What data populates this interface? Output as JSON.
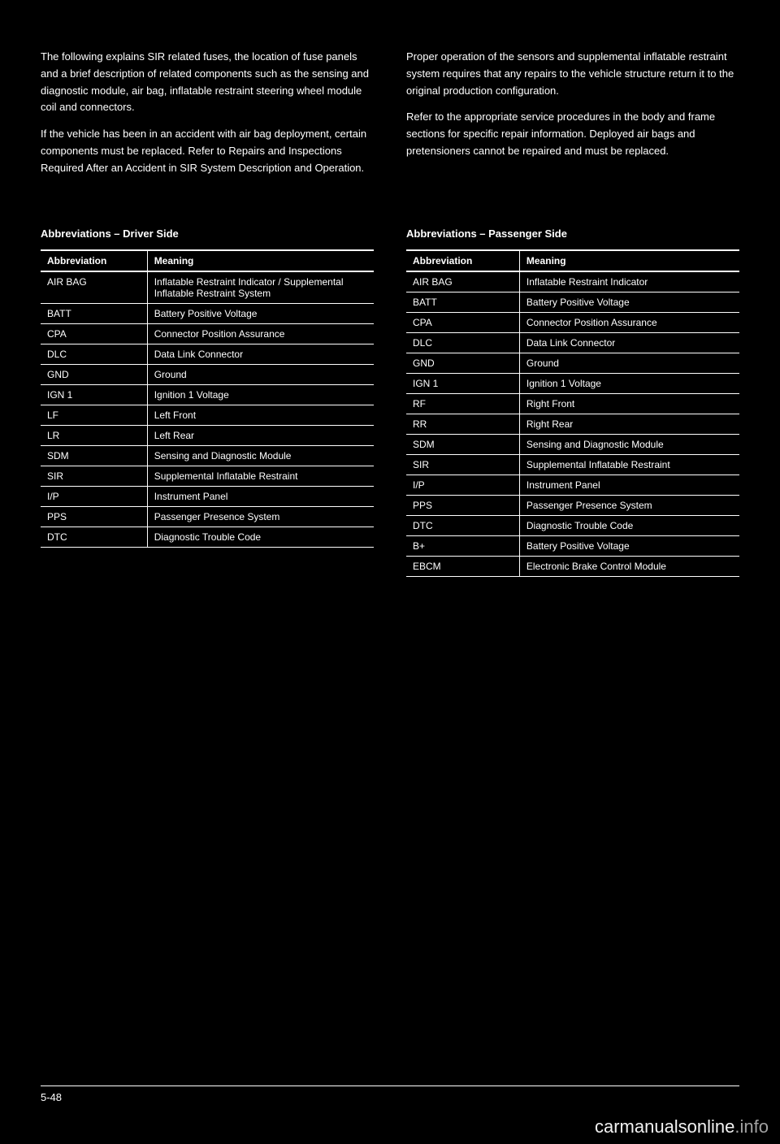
{
  "page": {
    "number": "5-48",
    "footer_rule_color": "#ffffff",
    "background": "#000000",
    "text_color": "#ffffff"
  },
  "prose": {
    "left": [
      "The following explains SIR related fuses, the location of fuse panels and a brief description of related components such as the sensing and diagnostic module, air bag, inflatable restraint steering wheel module coil and connectors.",
      "If the vehicle has been in an accident with air bag deployment, certain components must be replaced. Refer to Repairs and Inspections Required After an Accident in SIR System Description and Operation."
    ],
    "right": [
      "Proper operation of the sensors and supplemental inflatable restraint system requires that any repairs to the vehicle structure return it to the original production configuration.",
      "Refer to the appropriate service procedures in the body and frame sections for specific repair information. Deployed air bags and pretensioners cannot be repaired and must be replaced."
    ]
  },
  "left_table": {
    "title": "Abbreviations – Driver Side",
    "columns": [
      "Abbreviation",
      "Meaning"
    ],
    "rows": [
      [
        "AIR BAG",
        "Inflatable Restraint Indicator / Supplemental Inflatable Restraint System"
      ],
      [
        "BATT",
        "Battery Positive Voltage"
      ],
      [
        "CPA",
        "Connector Position Assurance"
      ],
      [
        "DLC",
        "Data Link Connector"
      ],
      [
        "GND",
        "Ground"
      ],
      [
        "IGN 1",
        "Ignition 1 Voltage"
      ],
      [
        "LF",
        "Left Front"
      ],
      [
        "LR",
        "Left Rear"
      ],
      [
        "SDM",
        "Sensing and Diagnostic Module"
      ],
      [
        "SIR",
        "Supplemental Inflatable Restraint"
      ],
      [
        "I/P",
        "Instrument Panel"
      ],
      [
        "PPS",
        "Passenger Presence System"
      ],
      [
        "DTC",
        "Diagnostic Trouble Code"
      ]
    ],
    "border_color": "#ffffff",
    "font_size_pt": 9
  },
  "right_table": {
    "title": "Abbreviations – Passenger Side",
    "columns": [
      "Abbreviation",
      "Meaning"
    ],
    "rows": [
      [
        "AIR BAG",
        "Inflatable Restraint Indicator"
      ],
      [
        "BATT",
        "Battery Positive Voltage"
      ],
      [
        "CPA",
        "Connector Position Assurance"
      ],
      [
        "DLC",
        "Data Link Connector"
      ],
      [
        "GND",
        "Ground"
      ],
      [
        "IGN 1",
        "Ignition 1 Voltage"
      ],
      [
        "RF",
        "Right Front"
      ],
      [
        "RR",
        "Right Rear"
      ],
      [
        "SDM",
        "Sensing and Diagnostic Module"
      ],
      [
        "SIR",
        "Supplemental Inflatable Restraint"
      ],
      [
        "I/P",
        "Instrument Panel"
      ],
      [
        "PPS",
        "Passenger Presence System"
      ],
      [
        "DTC",
        "Diagnostic Trouble Code"
      ],
      [
        "B+",
        "Battery Positive Voltage"
      ],
      [
        "EBCM",
        "Electronic Brake Control Module"
      ]
    ],
    "border_color": "#ffffff",
    "font_size_pt": 9
  },
  "watermark": {
    "main": "carmanualsonline",
    "suffix": ".info"
  }
}
